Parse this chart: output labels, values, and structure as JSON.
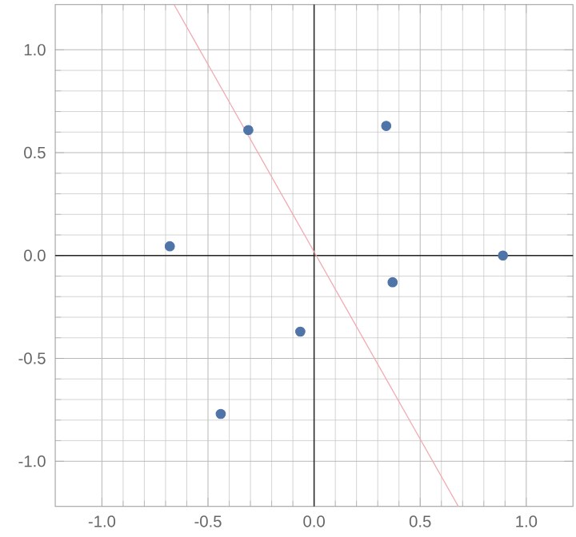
{
  "chart_data": {
    "type": "scatter",
    "xlim": [
      -1.22,
      1.22
    ],
    "ylim": [
      -1.22,
      1.22
    ],
    "xticks": [
      {
        "value": -1,
        "label": "-1.0"
      },
      {
        "value": -0.5,
        "label": "-0.5"
      },
      {
        "value": 0,
        "label": "0.0"
      },
      {
        "value": 0.5,
        "label": "0.5"
      },
      {
        "value": 1,
        "label": "1.0"
      }
    ],
    "yticks": [
      {
        "value": -1,
        "label": "-1.0"
      },
      {
        "value": -0.5,
        "label": "-0.5"
      },
      {
        "value": 0,
        "label": "0.0"
      },
      {
        "value": 0.5,
        "label": "0.5"
      },
      {
        "value": 1,
        "label": "1.0"
      }
    ],
    "grid": true,
    "series": [
      {
        "marker": "circle",
        "color": "#4f74a8",
        "x": [
          -0.31,
          0.34,
          -0.68,
          0.89,
          0.37,
          -0.065,
          -0.44
        ],
        "values": [
          0.61,
          0.63,
          0.045,
          0.0,
          -0.13,
          -0.37,
          -0.77
        ]
      },
      {
        "type": "line",
        "color": "#f2a8b0",
        "marker": "none",
        "x": [
          -0.66,
          0.68
        ],
        "values": [
          1.22,
          -1.22
        ]
      }
    ]
  }
}
